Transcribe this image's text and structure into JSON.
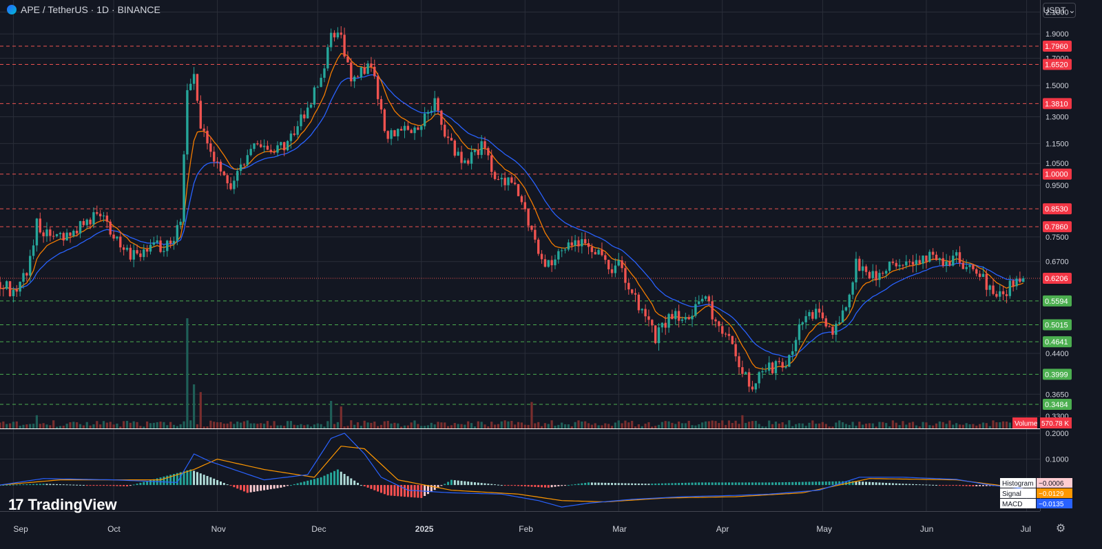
{
  "header": {
    "symbol": "APE / TetherUS · 1D · BINANCE"
  },
  "currency_button": {
    "label": "USDT",
    "icon": "chevron-down-icon"
  },
  "branding": {
    "name": "TradingView"
  },
  "colors": {
    "bg": "#131722",
    "grid": "#2a2e39",
    "up": "#26a69a",
    "down": "#ef5350",
    "ema_fast": "#f57c00",
    "ema_slow": "#2962ff",
    "axis_text": "#d1d4dc"
  },
  "chart_data": [
    {
      "type": "candlestick",
      "title": "APE / TetherUS · 1D · BINANCE",
      "y_scale": "log",
      "ylim": [
        0.32,
        2.15
      ],
      "price_ticks": [
        "2.1000",
        "1.9000",
        "1.7000",
        "1.5000",
        "1.3000",
        "1.1500",
        "1.0500",
        "0.9500",
        "0.7500",
        "0.6700",
        "0.4400",
        "0.3650",
        "0.3300"
      ],
      "x_ticks": [
        "Sep",
        "Oct",
        "Nov",
        "Dec",
        "2025",
        "Feb",
        "Mar",
        "Apr",
        "May",
        "Jun",
        "Jul"
      ],
      "levels": [
        {
          "value": 1.796,
          "label": "1.7960",
          "kind": "resistance"
        },
        {
          "value": 1.652,
          "label": "1.6520",
          "kind": "resistance"
        },
        {
          "value": 1.381,
          "label": "1.3810",
          "kind": "resistance"
        },
        {
          "value": 1.0,
          "label": "1.0000",
          "kind": "resistance"
        },
        {
          "value": 0.853,
          "label": "0.8530",
          "kind": "resistance"
        },
        {
          "value": 0.786,
          "label": "0.7860",
          "kind": "resistance"
        },
        {
          "value": 0.6206,
          "label": "0.6206",
          "kind": "current"
        },
        {
          "value": 0.5594,
          "label": "0.5594",
          "kind": "support"
        },
        {
          "value": 0.5015,
          "label": "0.5015",
          "kind": "support"
        },
        {
          "value": 0.4641,
          "label": "0.4641",
          "kind": "support"
        },
        {
          "value": 0.3999,
          "label": "0.3999",
          "kind": "support"
        },
        {
          "value": 0.3484,
          "label": "0.3484",
          "kind": "support"
        }
      ],
      "close_path": [
        [
          "2024-08-28",
          0.61
        ],
        [
          "2024-09-01",
          0.58
        ],
        [
          "2024-09-05",
          0.64
        ],
        [
          "2024-09-08",
          0.8
        ],
        [
          "2024-09-12",
          0.75
        ],
        [
          "2024-09-18",
          0.76
        ],
        [
          "2024-09-22",
          0.8
        ],
        [
          "2024-09-27",
          0.84
        ],
        [
          "2024-10-01",
          0.76
        ],
        [
          "2024-10-04",
          0.7
        ],
        [
          "2024-10-08",
          0.69
        ],
        [
          "2024-10-12",
          0.72
        ],
        [
          "2024-10-18",
          0.72
        ],
        [
          "2024-10-21",
          0.82
        ],
        [
          "2024-10-23",
          1.45
        ],
        [
          "2024-10-25",
          1.55
        ],
        [
          "2024-10-27",
          1.25
        ],
        [
          "2024-10-30",
          1.1
        ],
        [
          "2024-11-02",
          1.0
        ],
        [
          "2024-11-05",
          0.94
        ],
        [
          "2024-11-08",
          1.05
        ],
        [
          "2024-11-12",
          1.15
        ],
        [
          "2024-11-18",
          1.1
        ],
        [
          "2024-11-24",
          1.2
        ],
        [
          "2024-11-29",
          1.4
        ],
        [
          "2024-12-03",
          1.6
        ],
        [
          "2024-12-05",
          1.9
        ],
        [
          "2024-12-08",
          1.85
        ],
        [
          "2024-12-11",
          1.55
        ],
        [
          "2024-12-15",
          1.63
        ],
        [
          "2024-12-18",
          1.58
        ],
        [
          "2024-12-21",
          1.2
        ],
        [
          "2024-12-26",
          1.22
        ],
        [
          "2025-01-01",
          1.25
        ],
        [
          "2025-01-05",
          1.38
        ],
        [
          "2025-01-09",
          1.15
        ],
        [
          "2025-01-15",
          1.05
        ],
        [
          "2025-01-19",
          1.15
        ],
        [
          "2025-01-23",
          0.98
        ],
        [
          "2025-01-29",
          0.95
        ],
        [
          "2025-02-01",
          0.83
        ],
        [
          "2025-02-03",
          0.76
        ],
        [
          "2025-02-07",
          0.66
        ],
        [
          "2025-02-12",
          0.7
        ],
        [
          "2025-02-18",
          0.74
        ],
        [
          "2025-02-24",
          0.68
        ],
        [
          "2025-02-27",
          0.63
        ],
        [
          "2025-03-01",
          0.67
        ],
        [
          "2025-03-05",
          0.58
        ],
        [
          "2025-03-09",
          0.52
        ],
        [
          "2025-03-12",
          0.47
        ],
        [
          "2025-03-16",
          0.52
        ],
        [
          "2025-03-22",
          0.53
        ],
        [
          "2025-03-27",
          0.56
        ],
        [
          "2025-03-31",
          0.5
        ],
        [
          "2025-04-04",
          0.46
        ],
        [
          "2025-04-07",
          0.4
        ],
        [
          "2025-04-10",
          0.38
        ],
        [
          "2025-04-14",
          0.41
        ],
        [
          "2025-04-20",
          0.42
        ],
        [
          "2025-04-25",
          0.51
        ],
        [
          "2025-04-30",
          0.54
        ],
        [
          "2025-05-04",
          0.48
        ],
        [
          "2025-05-08",
          0.55
        ],
        [
          "2025-05-11",
          0.66
        ],
        [
          "2025-05-14",
          0.64
        ],
        [
          "2025-05-18",
          0.63
        ],
        [
          "2025-05-22",
          0.66
        ],
        [
          "2025-05-26",
          0.67
        ],
        [
          "2025-05-30",
          0.66
        ],
        [
          "2025-06-03",
          0.7
        ],
        [
          "2025-06-06",
          0.66
        ],
        [
          "2025-06-10",
          0.69
        ],
        [
          "2025-06-14",
          0.64
        ],
        [
          "2025-06-18",
          0.62
        ],
        [
          "2025-06-22",
          0.56
        ],
        [
          "2025-06-26",
          0.6
        ],
        [
          "2025-06-30",
          0.6206
        ]
      ]
    },
    {
      "type": "bar",
      "title": "Volume",
      "last_value_label": "570.78 K",
      "spikes": [
        [
          "2024-09-08",
          0.12
        ],
        [
          "2024-10-23",
          1.0
        ],
        [
          "2024-10-25",
          0.4
        ],
        [
          "2024-10-27",
          0.33
        ],
        [
          "2024-12-05",
          0.25
        ],
        [
          "2024-12-08",
          0.2
        ],
        [
          "2025-02-03",
          0.24
        ],
        [
          "2025-04-07",
          0.12
        ]
      ]
    },
    {
      "type": "line",
      "title": "MACD",
      "ylim": [
        -0.09,
        0.205
      ],
      "y_ticks": [
        "0.2000",
        "0.1000"
      ],
      "legend": [
        {
          "name": "Histogram",
          "value": "−0.0006",
          "color": "#ffcdd2"
        },
        {
          "name": "Signal",
          "value": "−0.0129",
          "color": "#ff9800"
        },
        {
          "name": "MACD",
          "value": "−0.0135",
          "color": "#2962ff"
        }
      ],
      "macd": [
        [
          "2024-08-28",
          0.0
        ],
        [
          "2024-09-10",
          0.025
        ],
        [
          "2024-10-01",
          0.02
        ],
        [
          "2024-10-20",
          0.01
        ],
        [
          "2024-10-25",
          0.12
        ],
        [
          "2024-10-30",
          0.09
        ],
        [
          "2024-11-15",
          0.02
        ],
        [
          "2024-11-28",
          0.04
        ],
        [
          "2024-12-05",
          0.18
        ],
        [
          "2024-12-09",
          0.2
        ],
        [
          "2024-12-15",
          0.12
        ],
        [
          "2024-12-20",
          0.03
        ],
        [
          "2024-12-28",
          -0.02
        ],
        [
          "2025-01-10",
          -0.03
        ],
        [
          "2025-01-25",
          -0.035
        ],
        [
          "2025-02-05",
          -0.06
        ],
        [
          "2025-02-12",
          -0.085
        ],
        [
          "2025-02-20",
          -0.07
        ],
        [
          "2025-03-05",
          -0.055
        ],
        [
          "2025-03-20",
          -0.045
        ],
        [
          "2025-04-05",
          -0.04
        ],
        [
          "2025-04-15",
          -0.035
        ],
        [
          "2025-04-30",
          -0.02
        ],
        [
          "2025-05-12",
          0.03
        ],
        [
          "2025-05-25",
          0.03
        ],
        [
          "2025-06-10",
          0.022
        ],
        [
          "2025-06-20",
          0.0
        ],
        [
          "2025-06-30",
          -0.0135
        ]
      ],
      "signal": [
        [
          "2024-08-28",
          0.0
        ],
        [
          "2024-09-15",
          0.02
        ],
        [
          "2024-10-15",
          0.02
        ],
        [
          "2024-10-25",
          0.06
        ],
        [
          "2024-11-01",
          0.1
        ],
        [
          "2024-11-15",
          0.06
        ],
        [
          "2024-11-30",
          0.03
        ],
        [
          "2024-12-08",
          0.15
        ],
        [
          "2024-12-15",
          0.14
        ],
        [
          "2024-12-25",
          0.02
        ],
        [
          "2025-01-10",
          -0.02
        ],
        [
          "2025-01-30",
          -0.035
        ],
        [
          "2025-02-12",
          -0.06
        ],
        [
          "2025-02-25",
          -0.065
        ],
        [
          "2025-03-15",
          -0.05
        ],
        [
          "2025-04-05",
          -0.045
        ],
        [
          "2025-04-25",
          -0.03
        ],
        [
          "2025-05-15",
          0.025
        ],
        [
          "2025-06-10",
          0.02
        ],
        [
          "2025-06-30",
          -0.0129
        ]
      ],
      "histogram": [
        [
          "2024-08-28",
          0.0
        ],
        [
          "2024-09-10",
          0.005
        ],
        [
          "2024-10-05",
          -0.005
        ],
        [
          "2024-10-24",
          0.06
        ],
        [
          "2024-10-30",
          0.03
        ],
        [
          "2024-11-10",
          -0.03
        ],
        [
          "2024-11-20",
          -0.01
        ],
        [
          "2024-12-02",
          0.03
        ],
        [
          "2024-12-07",
          0.06
        ],
        [
          "2024-12-14",
          0.0
        ],
        [
          "2024-12-22",
          -0.04
        ],
        [
          "2025-01-01",
          -0.05
        ],
        [
          "2025-01-10",
          0.02
        ],
        [
          "2025-01-25",
          0.0
        ],
        [
          "2025-02-08",
          -0.01
        ],
        [
          "2025-02-20",
          0.01
        ],
        [
          "2025-03-10",
          0.005
        ],
        [
          "2025-03-25",
          0.01
        ],
        [
          "2025-04-15",
          0.01
        ],
        [
          "2025-05-10",
          0.015
        ],
        [
          "2025-05-25",
          0.005
        ],
        [
          "2025-06-15",
          -0.005
        ],
        [
          "2025-06-30",
          -0.0006
        ]
      ]
    }
  ]
}
